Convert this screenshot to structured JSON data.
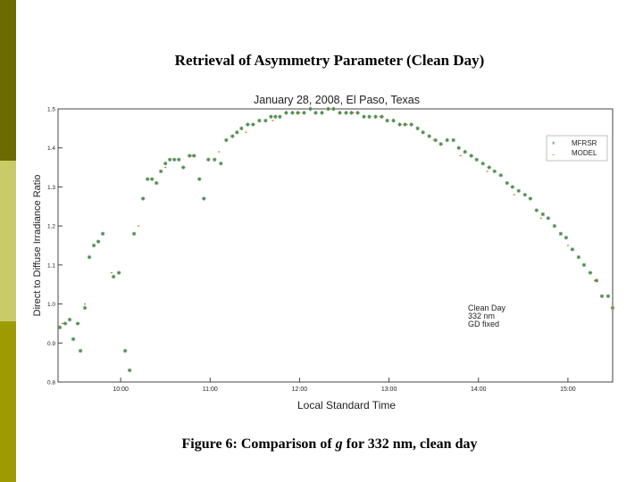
{
  "theme": {
    "sidebar_colors": [
      "#6b6b00",
      "#c9cc66",
      "#9c9c00"
    ],
    "mfrsr_color": "#4a8a4a",
    "model_color": "#d2691e"
  },
  "slide": {
    "title": "Retrieval of Asymmetry Parameter (Clean Day)",
    "caption_pre": "Figure 6: Comparison of ",
    "caption_g": "g",
    "caption_post": " for 332 nm, clean day"
  },
  "chart_data": {
    "type": "scatter",
    "title": "January 28, 2008, El Paso, Texas",
    "xlabel": "Local Standard Time",
    "ylabel": "Direct to Diffuse Irradiance Ratio",
    "xlim": [
      9.3,
      15.5
    ],
    "ylim": [
      0.8,
      1.5
    ],
    "x_ticks": [
      10,
      11,
      12,
      13,
      14,
      15
    ],
    "x_tick_labels": [
      "10:00",
      "11:00",
      "12:00",
      "13:00",
      "14:00",
      "15:00"
    ],
    "y_ticks": [
      0.8,
      0.9,
      1.0,
      1.1,
      1.2,
      1.3,
      1.4,
      1.5
    ],
    "y_tick_labels": [
      "0.8",
      "0.9",
      "1.0",
      "1.1",
      "1.2",
      "1.3",
      "1.4",
      "1.5"
    ],
    "legend": {
      "position": "top-right",
      "entries": [
        "MFRSR",
        "MODEL"
      ]
    },
    "annotation": [
      "Clean Day",
      "332 nm",
      "GD fixed"
    ],
    "grid": false,
    "series": [
      {
        "name": "MFRSR",
        "marker": "*",
        "x": [
          9.32,
          9.38,
          9.43,
          9.47,
          9.52,
          9.55,
          9.6,
          9.65,
          9.7,
          9.75,
          9.8,
          9.92,
          9.98,
          10.05,
          10.1,
          10.15,
          10.25,
          10.3,
          10.35,
          10.4,
          10.45,
          10.5,
          10.55,
          10.6,
          10.65,
          10.7,
          10.77,
          10.82,
          10.88,
          10.93,
          10.98,
          11.05,
          11.12,
          11.18,
          11.25,
          11.3,
          11.35,
          11.42,
          11.48,
          11.55,
          11.62,
          11.68,
          11.73,
          11.78,
          11.85,
          11.92,
          11.98,
          12.05,
          12.12,
          12.18,
          12.25,
          12.32,
          12.38,
          12.45,
          12.52,
          12.58,
          12.65,
          12.72,
          12.78,
          12.85,
          12.92,
          12.98,
          13.05,
          13.12,
          13.18,
          13.25,
          13.32,
          13.38,
          13.45,
          13.52,
          13.58,
          13.65,
          13.72,
          13.78,
          13.85,
          13.92,
          13.98,
          14.05,
          14.12,
          14.18,
          14.25,
          14.32,
          14.38,
          14.45,
          14.52,
          14.58,
          14.65,
          14.72,
          14.78,
          14.85,
          14.92,
          14.98,
          15.05,
          15.12,
          15.18,
          15.25,
          15.32,
          15.38,
          15.45,
          15.5
        ],
        "y": [
          0.94,
          0.95,
          0.96,
          0.91,
          0.95,
          0.88,
          0.99,
          1.12,
          1.15,
          1.16,
          1.18,
          1.07,
          1.08,
          0.88,
          0.83,
          1.18,
          1.27,
          1.32,
          1.32,
          1.31,
          1.34,
          1.36,
          1.37,
          1.37,
          1.37,
          1.35,
          1.38,
          1.38,
          1.32,
          1.27,
          1.37,
          1.37,
          1.36,
          1.42,
          1.43,
          1.44,
          1.45,
          1.46,
          1.46,
          1.47,
          1.47,
          1.48,
          1.48,
          1.48,
          1.49,
          1.49,
          1.49,
          1.49,
          1.5,
          1.49,
          1.49,
          1.5,
          1.5,
          1.49,
          1.49,
          1.49,
          1.49,
          1.48,
          1.48,
          1.48,
          1.48,
          1.47,
          1.47,
          1.46,
          1.46,
          1.46,
          1.45,
          1.44,
          1.43,
          1.42,
          1.41,
          1.42,
          1.42,
          1.4,
          1.39,
          1.38,
          1.37,
          1.36,
          1.35,
          1.34,
          1.33,
          1.31,
          1.3,
          1.29,
          1.28,
          1.27,
          1.24,
          1.23,
          1.22,
          1.2,
          1.18,
          1.17,
          1.14,
          1.12,
          1.1,
          1.08,
          1.06,
          1.02,
          1.02,
          0.99
        ]
      },
      {
        "name": "MODEL",
        "marker": "+",
        "x": [
          9.35,
          9.6,
          9.9,
          10.2,
          10.5,
          10.8,
          11.1,
          11.4,
          11.7,
          12.0,
          12.3,
          12.6,
          12.9,
          13.2,
          13.5,
          13.8,
          14.1,
          14.4,
          14.7,
          15.0,
          15.3,
          15.5
        ],
        "y": [
          0.95,
          1.0,
          1.08,
          1.2,
          1.35,
          1.38,
          1.39,
          1.44,
          1.47,
          1.49,
          1.5,
          1.49,
          1.48,
          1.46,
          1.42,
          1.38,
          1.34,
          1.28,
          1.22,
          1.15,
          1.06,
          0.99
        ]
      }
    ]
  }
}
